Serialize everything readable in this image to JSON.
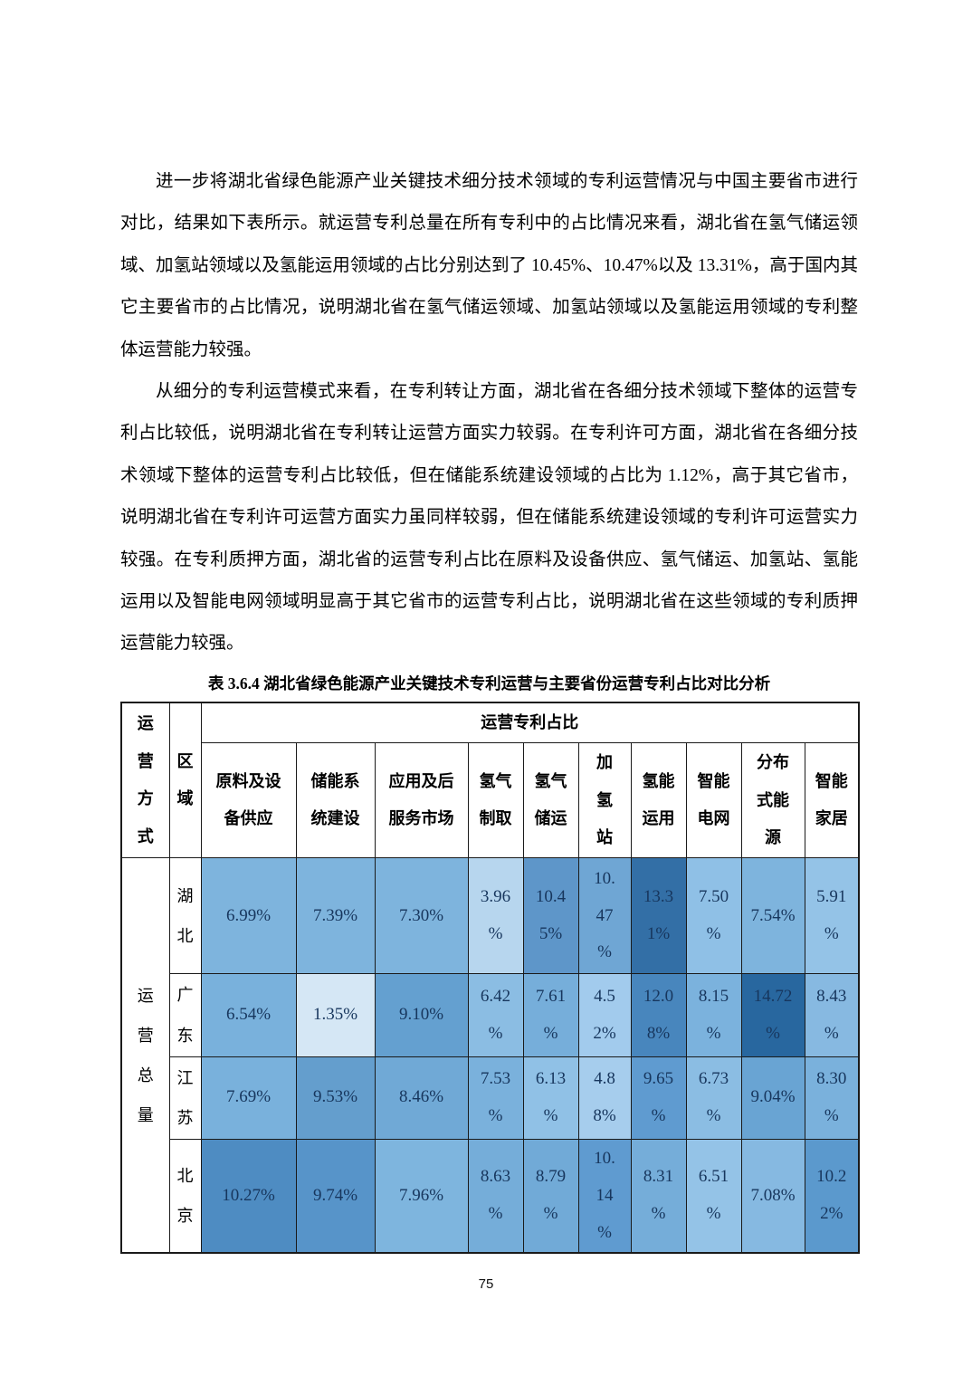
{
  "page": {
    "number": "75"
  },
  "paragraphs": [
    {
      "text": "进一步将湖北省绿色能源产业关键技术细分技术领域的专利运营情况与中国主要省市进行对比，结果如下表所示。就运营专利总量在所有专利中的占比情况来看，湖北省在氢气储运领域、加氢站领域以及氢能运用领域的占比分别达到了 10.45%、10.47%以及 13.31%，高于国内其它主要省市的占比情况，说明湖北省在氢气储运领域、加氢站领域以及氢能运用领域的专利整体运营能力较强。"
    },
    {
      "text": "从细分的专利运营模式来看，在专利转让方面，湖北省在各细分技术领域下整体的运营专利占比较低，说明湖北省在专利转让运营方面实力较弱。在专利许可方面，湖北省在各细分技术领域下整体的运营专利占比较低，但在储能系统建设领域的占比为 1.12%，高于其它省市，说明湖北省在专利许可运营方面实力虽同样较弱，但在储能系统建设领域的专利许可运营实力较强。在专利质押方面，湖北省的运营专利占比在原料及设备供应、氢气储运、加氢站、氢能运用以及智能电网领域明显高于其它省市的运营专利占比，说明湖北省在这些领域的专利质押运营能力较强。"
    }
  ],
  "table": {
    "caption": "表 3.6.4 湖北省绿色能源产业关键技术专利运营与主要省份运营专利占比对比分析",
    "corner_header": {
      "label": "运营方式",
      "lines": [
        "运",
        "营",
        "方",
        "式"
      ]
    },
    "region_header": {
      "label": "区域",
      "lines": [
        "区",
        "域"
      ]
    },
    "span_header": "运营专利占比",
    "value_text_color": "#17365d",
    "columns": [
      {
        "label": "原料及设备供应",
        "lines": [
          "原料及设",
          "备供应"
        ]
      },
      {
        "label": "储能系统建设",
        "lines": [
          "储能系",
          "统建设"
        ]
      },
      {
        "label": "应用及后服务市场",
        "lines": [
          "应用及后",
          "服务市场"
        ]
      },
      {
        "label": "氢气制取",
        "lines": [
          "氢气",
          "制取"
        ]
      },
      {
        "label": "氢气储运",
        "lines": [
          "氢气",
          "储运"
        ]
      },
      {
        "label": "加氢站",
        "lines": [
          "加",
          "氢",
          "站"
        ]
      },
      {
        "label": "氢能运用",
        "lines": [
          "氢能",
          "运用"
        ]
      },
      {
        "label": "智能电网",
        "lines": [
          "智能",
          "电网"
        ]
      },
      {
        "label": "分布式能源",
        "lines": [
          "分布",
          "式能",
          "源"
        ]
      },
      {
        "label": "智能家居",
        "lines": [
          "智能",
          "家居"
        ]
      }
    ],
    "row_group": {
      "label": "运营总量",
      "lines": [
        "运",
        "营",
        "总",
        "量"
      ]
    },
    "rows": [
      {
        "region": "湖北",
        "region_lines": [
          "湖",
          "北"
        ],
        "cells": [
          {
            "value": "6.99%",
            "lines": [
              "6.99%"
            ],
            "bg": "#7eb4dd"
          },
          {
            "value": "7.39%",
            "lines": [
              "7.39%"
            ],
            "bg": "#7eb4dd"
          },
          {
            "value": "7.30%",
            "lines": [
              "7.30%"
            ],
            "bg": "#7eb4dd"
          },
          {
            "value": "3.96%",
            "lines": [
              "3.96",
              "%"
            ],
            "bg": "#b7d6ee"
          },
          {
            "value": "10.45%",
            "lines": [
              "10.4",
              "5%"
            ],
            "bg": "#5e96c9"
          },
          {
            "value": "10.47%",
            "lines": [
              "10.",
              "47",
              "%"
            ],
            "bg": "#6fa6d4"
          },
          {
            "value": "13.31%",
            "lines": [
              "13.3",
              "1%"
            ],
            "bg": "#336fa6"
          },
          {
            "value": "7.50%",
            "lines": [
              "7.50",
              "%"
            ],
            "bg": "#8fc0e6"
          },
          {
            "value": "7.54%",
            "lines": [
              "7.54%"
            ],
            "bg": "#7eb4dd"
          },
          {
            "value": "5.91%",
            "lines": [
              "5.91",
              "%"
            ],
            "bg": "#94c3e7"
          }
        ]
      },
      {
        "region": "广东",
        "region_lines": [
          "广",
          "东"
        ],
        "cells": [
          {
            "value": "6.54%",
            "lines": [
              "6.54%"
            ],
            "bg": "#79b1dc"
          },
          {
            "value": "1.35%",
            "lines": [
              "1.35%"
            ],
            "bg": "#d5e7f5"
          },
          {
            "value": "9.10%",
            "lines": [
              "9.10%"
            ],
            "bg": "#64a0d0"
          },
          {
            "value": "6.42%",
            "lines": [
              "6.42",
              "%"
            ],
            "bg": "#8bbde3"
          },
          {
            "value": "7.61%",
            "lines": [
              "7.61",
              "%"
            ],
            "bg": "#76aeda"
          },
          {
            "value": "4.52%",
            "lines": [
              "4.5",
              "2%"
            ],
            "bg": "#a2cbed"
          },
          {
            "value": "12.08%",
            "lines": [
              "12.0",
              "8%"
            ],
            "bg": "#4886bd"
          },
          {
            "value": "8.15%",
            "lines": [
              "8.15",
              "%"
            ],
            "bg": "#7bb2dd"
          },
          {
            "value": "14.72%",
            "lines": [
              "14.72",
              "%"
            ],
            "bg": "#28679f"
          },
          {
            "value": "8.43%",
            "lines": [
              "8.43",
              "%"
            ],
            "bg": "#87b9e1"
          }
        ]
      },
      {
        "region": "江苏",
        "region_lines": [
          "江",
          "苏"
        ],
        "cells": [
          {
            "value": "7.69%",
            "lines": [
              "7.69%"
            ],
            "bg": "#79b1dc"
          },
          {
            "value": "9.53%",
            "lines": [
              "9.53%"
            ],
            "bg": "#649ecd"
          },
          {
            "value": "8.46%",
            "lines": [
              "8.46%"
            ],
            "bg": "#70a9d6"
          },
          {
            "value": "7.53%",
            "lines": [
              "7.53",
              "%"
            ],
            "bg": "#7ab1dc"
          },
          {
            "value": "6.13%",
            "lines": [
              "6.13",
              "%"
            ],
            "bg": "#90c1e6"
          },
          {
            "value": "4.88%",
            "lines": [
              "4.8",
              "8%"
            ],
            "bg": "#a6cded"
          },
          {
            "value": "9.65%",
            "lines": [
              "9.65",
              "%"
            ],
            "bg": "#5f9bd0"
          },
          {
            "value": "6.73%",
            "lines": [
              "6.73",
              "%"
            ],
            "bg": "#8bbde3"
          },
          {
            "value": "9.04%",
            "lines": [
              "9.04%"
            ],
            "bg": "#69a4d3"
          },
          {
            "value": "8.30%",
            "lines": [
              "8.30",
              "%"
            ],
            "bg": "#7ab1dc"
          }
        ]
      },
      {
        "region": "北京",
        "region_lines": [
          "北",
          "京"
        ],
        "cells": [
          {
            "value": "10.27%",
            "lines": [
              "10.27%"
            ],
            "bg": "#4e8cc2"
          },
          {
            "value": "9.74%",
            "lines": [
              "9.74%"
            ],
            "bg": "#5794c9"
          },
          {
            "value": "7.96%",
            "lines": [
              "7.96%"
            ],
            "bg": "#7eb5de"
          },
          {
            "value": "8.63%",
            "lines": [
              "8.63",
              "%"
            ],
            "bg": "#75add9"
          },
          {
            "value": "8.79%",
            "lines": [
              "8.79",
              "%"
            ],
            "bg": "#71aad7"
          },
          {
            "value": "10.14%",
            "lines": [
              "10.",
              "14",
              "%"
            ],
            "bg": "#5f9bd0"
          },
          {
            "value": "8.31%",
            "lines": [
              "8.31",
              "%"
            ],
            "bg": "#75add9"
          },
          {
            "value": "6.51%",
            "lines": [
              "6.51",
              "%"
            ],
            "bg": "#94c3e7"
          },
          {
            "value": "7.08%",
            "lines": [
              "7.08%"
            ],
            "bg": "#86b9e1"
          },
          {
            "value": "10.22%",
            "lines": [
              "10.2",
              "2%"
            ],
            "bg": "#5b99cd"
          }
        ]
      }
    ]
  }
}
